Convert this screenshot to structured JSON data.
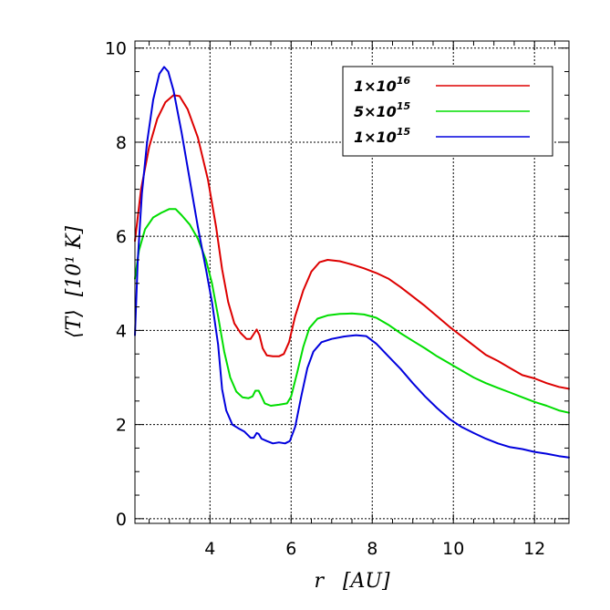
{
  "chart_data": {
    "type": "line",
    "title": "",
    "xlabel": "r   [AU]",
    "ylabel": "⟨T⟩  [10¹ K]",
    "xlim": [
      2.15,
      12.85
    ],
    "ylim": [
      -0.1,
      10.15
    ],
    "x_ticks": [
      4,
      6,
      8,
      10,
      12
    ],
    "x_tick_labels": [
      "4",
      "6",
      "8",
      "10",
      "12"
    ],
    "y_ticks": [
      0,
      2,
      4,
      6,
      8,
      10
    ],
    "y_tick_labels": [
      "0",
      "2",
      "4",
      "6",
      "8",
      "10"
    ],
    "grid": true,
    "legend_position": "top-right",
    "series": [
      {
        "name": "1×10¹⁶",
        "legend_base": "1×10",
        "legend_exp": "16",
        "color": "#dd0000",
        "points": [
          [
            2.15,
            5.9
          ],
          [
            2.3,
            7.0
          ],
          [
            2.5,
            7.9
          ],
          [
            2.7,
            8.5
          ],
          [
            2.9,
            8.85
          ],
          [
            3.1,
            9.0
          ],
          [
            3.25,
            8.98
          ],
          [
            3.45,
            8.7
          ],
          [
            3.7,
            8.1
          ],
          [
            3.95,
            7.2
          ],
          [
            4.15,
            6.2
          ],
          [
            4.3,
            5.3
          ],
          [
            4.45,
            4.6
          ],
          [
            4.6,
            4.15
          ],
          [
            4.75,
            3.95
          ],
          [
            4.9,
            3.82
          ],
          [
            5.0,
            3.82
          ],
          [
            5.1,
            3.95
          ],
          [
            5.15,
            4.02
          ],
          [
            5.22,
            3.9
          ],
          [
            5.3,
            3.62
          ],
          [
            5.4,
            3.47
          ],
          [
            5.55,
            3.45
          ],
          [
            5.7,
            3.45
          ],
          [
            5.82,
            3.5
          ],
          [
            5.95,
            3.75
          ],
          [
            6.1,
            4.3
          ],
          [
            6.3,
            4.85
          ],
          [
            6.5,
            5.25
          ],
          [
            6.7,
            5.45
          ],
          [
            6.9,
            5.5
          ],
          [
            7.2,
            5.47
          ],
          [
            7.5,
            5.4
          ],
          [
            7.8,
            5.32
          ],
          [
            8.1,
            5.22
          ],
          [
            8.4,
            5.1
          ],
          [
            8.7,
            4.92
          ],
          [
            9.0,
            4.72
          ],
          [
            9.3,
            4.52
          ],
          [
            9.6,
            4.3
          ],
          [
            9.9,
            4.08
          ],
          [
            10.2,
            3.88
          ],
          [
            10.5,
            3.68
          ],
          [
            10.8,
            3.48
          ],
          [
            11.1,
            3.35
          ],
          [
            11.4,
            3.2
          ],
          [
            11.7,
            3.05
          ],
          [
            12.0,
            2.98
          ],
          [
            12.3,
            2.88
          ],
          [
            12.6,
            2.8
          ],
          [
            12.85,
            2.76
          ]
        ]
      },
      {
        "name": "5×10¹⁵",
        "legend_base": "5×10",
        "legend_exp": "15",
        "color": "#00dd00",
        "points": [
          [
            2.15,
            5.1
          ],
          [
            2.25,
            5.7
          ],
          [
            2.4,
            6.15
          ],
          [
            2.6,
            6.4
          ],
          [
            2.8,
            6.5
          ],
          [
            3.0,
            6.58
          ],
          [
            3.15,
            6.58
          ],
          [
            3.3,
            6.45
          ],
          [
            3.5,
            6.25
          ],
          [
            3.7,
            5.95
          ],
          [
            3.9,
            5.5
          ],
          [
            4.05,
            5.0
          ],
          [
            4.2,
            4.3
          ],
          [
            4.35,
            3.55
          ],
          [
            4.5,
            3.0
          ],
          [
            4.65,
            2.7
          ],
          [
            4.8,
            2.58
          ],
          [
            4.95,
            2.56
          ],
          [
            5.05,
            2.6
          ],
          [
            5.12,
            2.72
          ],
          [
            5.2,
            2.72
          ],
          [
            5.27,
            2.6
          ],
          [
            5.35,
            2.45
          ],
          [
            5.5,
            2.4
          ],
          [
            5.7,
            2.42
          ],
          [
            5.9,
            2.45
          ],
          [
            6.0,
            2.6
          ],
          [
            6.15,
            3.1
          ],
          [
            6.3,
            3.65
          ],
          [
            6.45,
            4.05
          ],
          [
            6.65,
            4.25
          ],
          [
            6.9,
            4.32
          ],
          [
            7.2,
            4.35
          ],
          [
            7.5,
            4.36
          ],
          [
            7.8,
            4.34
          ],
          [
            8.1,
            4.27
          ],
          [
            8.4,
            4.12
          ],
          [
            8.7,
            3.94
          ],
          [
            9.0,
            3.78
          ],
          [
            9.3,
            3.62
          ],
          [
            9.6,
            3.45
          ],
          [
            9.9,
            3.3
          ],
          [
            10.2,
            3.15
          ],
          [
            10.5,
            3.0
          ],
          [
            10.8,
            2.88
          ],
          [
            11.1,
            2.78
          ],
          [
            11.4,
            2.68
          ],
          [
            11.7,
            2.58
          ],
          [
            12.0,
            2.48
          ],
          [
            12.3,
            2.4
          ],
          [
            12.6,
            2.3
          ],
          [
            12.85,
            2.25
          ]
        ]
      },
      {
        "name": "1×10¹⁵",
        "legend_base": "1×10",
        "legend_exp": "15",
        "color": "#0000dd",
        "points": [
          [
            2.15,
            3.9
          ],
          [
            2.22,
            5.5
          ],
          [
            2.32,
            6.9
          ],
          [
            2.45,
            8.0
          ],
          [
            2.6,
            8.9
          ],
          [
            2.75,
            9.45
          ],
          [
            2.87,
            9.6
          ],
          [
            2.97,
            9.5
          ],
          [
            3.1,
            9.1
          ],
          [
            3.3,
            8.2
          ],
          [
            3.5,
            7.2
          ],
          [
            3.7,
            6.2
          ],
          [
            3.9,
            5.3
          ],
          [
            4.05,
            4.6
          ],
          [
            4.2,
            3.7
          ],
          [
            4.3,
            2.75
          ],
          [
            4.4,
            2.3
          ],
          [
            4.55,
            2.0
          ],
          [
            4.7,
            1.92
          ],
          [
            4.85,
            1.85
          ],
          [
            5.0,
            1.72
          ],
          [
            5.08,
            1.72
          ],
          [
            5.15,
            1.82
          ],
          [
            5.2,
            1.8
          ],
          [
            5.27,
            1.7
          ],
          [
            5.4,
            1.65
          ],
          [
            5.55,
            1.6
          ],
          [
            5.7,
            1.62
          ],
          [
            5.85,
            1.6
          ],
          [
            5.97,
            1.65
          ],
          [
            6.1,
            1.95
          ],
          [
            6.25,
            2.6
          ],
          [
            6.4,
            3.2
          ],
          [
            6.55,
            3.55
          ],
          [
            6.75,
            3.75
          ],
          [
            7.0,
            3.82
          ],
          [
            7.3,
            3.87
          ],
          [
            7.6,
            3.9
          ],
          [
            7.85,
            3.88
          ],
          [
            8.1,
            3.72
          ],
          [
            8.4,
            3.45
          ],
          [
            8.7,
            3.18
          ],
          [
            9.0,
            2.88
          ],
          [
            9.3,
            2.6
          ],
          [
            9.6,
            2.35
          ],
          [
            9.9,
            2.12
          ],
          [
            10.2,
            1.95
          ],
          [
            10.5,
            1.82
          ],
          [
            10.8,
            1.7
          ],
          [
            11.1,
            1.6
          ],
          [
            11.4,
            1.52
          ],
          [
            11.7,
            1.48
          ],
          [
            12.0,
            1.42
          ],
          [
            12.3,
            1.38
          ],
          [
            12.6,
            1.33
          ],
          [
            12.85,
            1.3
          ]
        ]
      }
    ]
  }
}
